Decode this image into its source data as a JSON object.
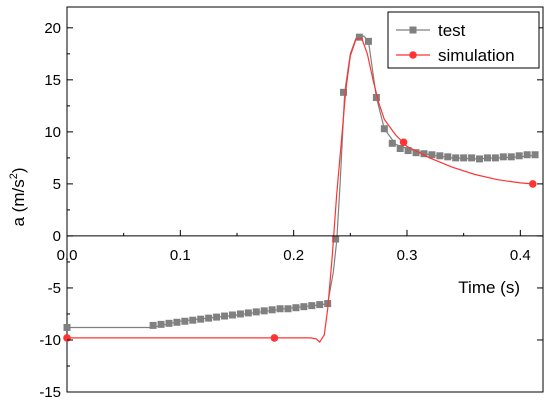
{
  "chart_data": {
    "type": "line",
    "xlabel": "Time (s)",
    "ylabel_main": "a (m/s",
    "ylabel_sup": "2",
    "ylabel_close": ")",
    "xlim": [
      0.0,
      0.42
    ],
    "ylim": [
      -15,
      22
    ],
    "x_ticks": [
      0.0,
      0.1,
      0.2,
      0.3,
      0.4
    ],
    "x_tick_labels": [
      "0.0",
      "0.1",
      "0.2",
      "0.3",
      "0.4"
    ],
    "y_ticks": [
      -15,
      -10,
      -5,
      0,
      5,
      10,
      15,
      20
    ],
    "y_tick_labels": [
      "-15",
      "-10",
      "-5",
      "0",
      "5",
      "10",
      "15",
      "20"
    ],
    "legend_position": "top-right",
    "legend": [
      {
        "label": "test",
        "color": "#808080",
        "marker": "square"
      },
      {
        "label": "simulation",
        "color": "#ff3333",
        "marker": "circle"
      }
    ],
    "series": [
      {
        "name": "test",
        "color": "#808080",
        "marker": "square",
        "line": [
          [
            0.0,
            -8.8
          ],
          [
            0.075,
            -8.8
          ],
          [
            0.1,
            -8.2
          ],
          [
            0.15,
            -7.6
          ],
          [
            0.2,
            -6.9
          ],
          [
            0.225,
            -6.6
          ],
          [
            0.23,
            -6.5
          ],
          [
            0.235,
            -3.5
          ],
          [
            0.238,
            -0.5
          ],
          [
            0.241,
            5.0
          ],
          [
            0.245,
            13.8
          ],
          [
            0.25,
            17.5
          ],
          [
            0.255,
            19.0
          ],
          [
            0.262,
            19.2
          ],
          [
            0.266,
            18.7
          ],
          [
            0.273,
            13.3
          ],
          [
            0.28,
            10.3
          ],
          [
            0.29,
            8.8
          ],
          [
            0.3,
            8.4
          ],
          [
            0.32,
            7.8
          ],
          [
            0.34,
            7.5
          ],
          [
            0.36,
            7.4
          ],
          [
            0.38,
            7.5
          ],
          [
            0.4,
            7.6
          ],
          [
            0.416,
            7.8
          ]
        ],
        "markers": [
          [
            0.0,
            -8.8
          ],
          [
            0.076,
            -8.6
          ],
          [
            0.083,
            -8.5
          ],
          [
            0.09,
            -8.4
          ],
          [
            0.097,
            -8.3
          ],
          [
            0.104,
            -8.2
          ],
          [
            0.111,
            -8.1
          ],
          [
            0.118,
            -8.0
          ],
          [
            0.125,
            -7.9
          ],
          [
            0.132,
            -7.8
          ],
          [
            0.139,
            -7.7
          ],
          [
            0.146,
            -7.6
          ],
          [
            0.153,
            -7.5
          ],
          [
            0.16,
            -7.4
          ],
          [
            0.167,
            -7.3
          ],
          [
            0.174,
            -7.2
          ],
          [
            0.181,
            -7.1
          ],
          [
            0.188,
            -7.0
          ],
          [
            0.195,
            -7.0
          ],
          [
            0.202,
            -6.9
          ],
          [
            0.209,
            -6.8
          ],
          [
            0.216,
            -6.7
          ],
          [
            0.223,
            -6.6
          ],
          [
            0.23,
            -6.5
          ],
          [
            0.237,
            -0.3
          ],
          [
            0.244,
            13.8
          ],
          [
            0.258,
            19.1
          ],
          [
            0.266,
            18.7
          ],
          [
            0.273,
            13.3
          ],
          [
            0.28,
            10.3
          ],
          [
            0.287,
            8.9
          ],
          [
            0.294,
            8.4
          ],
          [
            0.301,
            8.2
          ],
          [
            0.308,
            8.0
          ],
          [
            0.315,
            7.9
          ],
          [
            0.322,
            7.8
          ],
          [
            0.329,
            7.7
          ],
          [
            0.336,
            7.6
          ],
          [
            0.343,
            7.5
          ],
          [
            0.35,
            7.5
          ],
          [
            0.357,
            7.5
          ],
          [
            0.364,
            7.4
          ],
          [
            0.371,
            7.5
          ],
          [
            0.378,
            7.5
          ],
          [
            0.385,
            7.6
          ],
          [
            0.392,
            7.6
          ],
          [
            0.399,
            7.7
          ],
          [
            0.406,
            7.8
          ],
          [
            0.413,
            7.8
          ]
        ]
      },
      {
        "name": "simulation",
        "color": "#ff3333",
        "marker": "circle",
        "line": [
          [
            0.0,
            -9.8
          ],
          [
            0.215,
            -9.8
          ],
          [
            0.22,
            -9.9
          ],
          [
            0.223,
            -10.2
          ],
          [
            0.227,
            -9.5
          ],
          [
            0.23,
            -7.0
          ],
          [
            0.234,
            -2.0
          ],
          [
            0.238,
            4.0
          ],
          [
            0.242,
            9.0
          ],
          [
            0.246,
            14.0
          ],
          [
            0.25,
            17.3
          ],
          [
            0.255,
            18.9
          ],
          [
            0.26,
            19.0
          ],
          [
            0.265,
            17.5
          ],
          [
            0.27,
            15.0
          ],
          [
            0.275,
            12.8
          ],
          [
            0.28,
            11.2
          ],
          [
            0.29,
            9.7
          ],
          [
            0.3,
            8.6
          ],
          [
            0.32,
            7.5
          ],
          [
            0.34,
            6.6
          ],
          [
            0.36,
            5.9
          ],
          [
            0.38,
            5.4
          ],
          [
            0.4,
            5.1
          ],
          [
            0.411,
            5.0
          ]
        ],
        "markers": [
          [
            0.0,
            -9.8
          ],
          [
            0.183,
            -9.8
          ],
          [
            0.297,
            9.0
          ],
          [
            0.411,
            5.0
          ]
        ]
      }
    ]
  }
}
